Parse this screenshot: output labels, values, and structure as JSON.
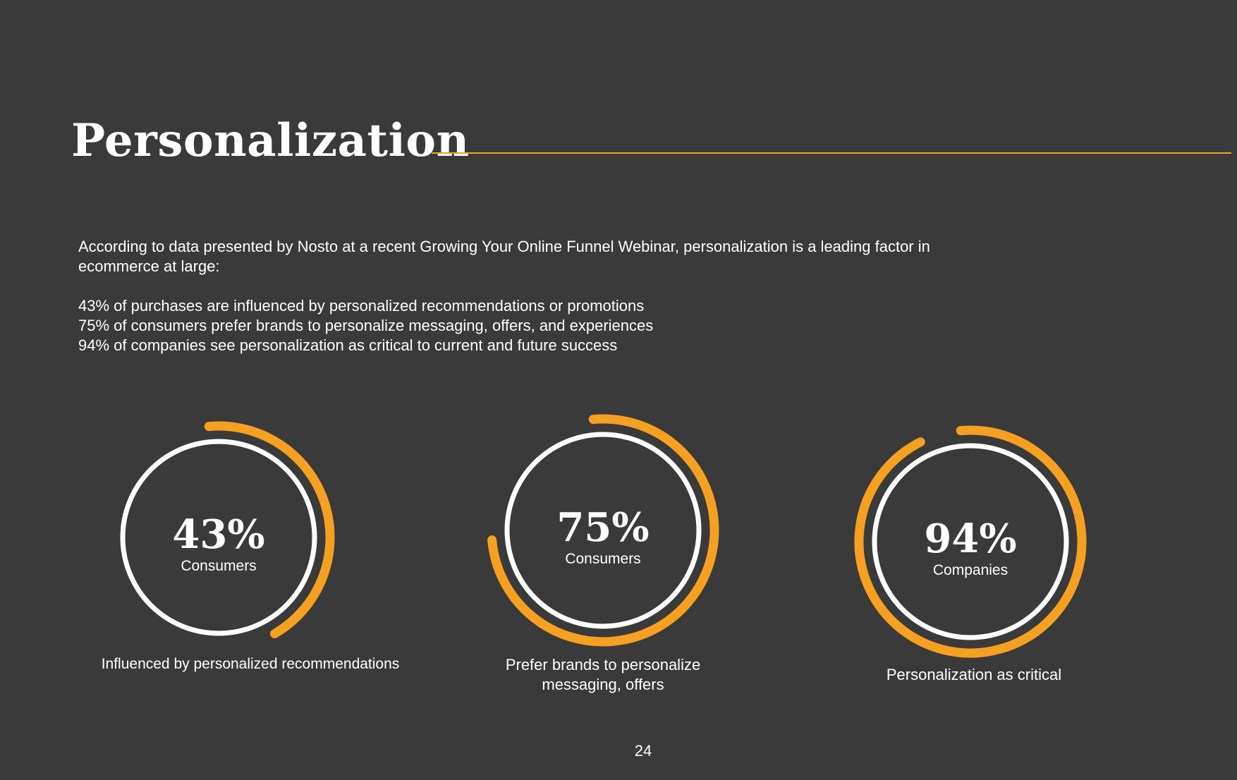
{
  "slide": {
    "title": "Personalization",
    "intro": "According to data presented by Nosto at a recent Growing Your Online Funnel Webinar, personalization is a leading factor in ecommerce at large:",
    "stats": [
      "43% of purchases are influenced by personalized recommendations or promotions",
      "75% of consumers prefer brands to personalize messaging, offers, and experiences",
      "94% of companies see personalization as critical to current and future success"
    ],
    "page_number": "24",
    "colors": {
      "background": "#3a3a3a",
      "accent": "#f5a021",
      "ring": "#ffffff",
      "text": "#ffffff"
    }
  },
  "chart_data": [
    {
      "type": "pie",
      "value": 43,
      "label": "43%",
      "sublabel": "Consumers",
      "caption": "Influenced by personalized recommendations"
    },
    {
      "type": "pie",
      "value": 75,
      "label": "75%",
      "sublabel": "Consumers",
      "caption": "Prefer brands to personalize messaging, offers"
    },
    {
      "type": "pie",
      "value": 94,
      "label": "94%",
      "sublabel": "Companies",
      "caption": "Personalization as critical"
    }
  ]
}
